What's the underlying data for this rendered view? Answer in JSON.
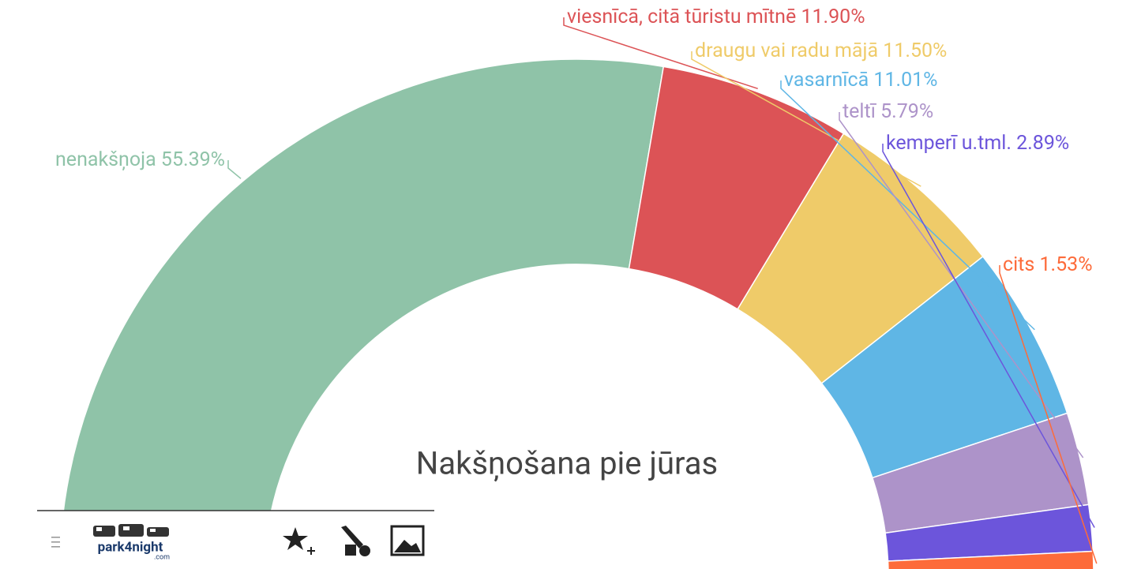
{
  "chart_data": {
    "type": "semi-donut",
    "title": "Nakšņošana pie jūras",
    "categories": [
      "nenakšņoja",
      "viesnīcā, citā tūristu mītnē",
      "draugu vai radu mājā",
      "vasarnīcā",
      "teltī",
      "kemperī u.tml.",
      "cits"
    ],
    "values": [
      55.39,
      11.9,
      11.5,
      11.01,
      5.79,
      2.89,
      1.53
    ],
    "value_labels": [
      "55.39%",
      "11.90%",
      "11.50%",
      "11.01%",
      "5.79%",
      "2.89%",
      "1.53%"
    ],
    "colors": [
      "#8fc3a8",
      "#dc5356",
      "#efcb69",
      "#5fb6e5",
      "#ad93c9",
      "#6c55db",
      "#fd6b3a"
    ]
  },
  "toolbar": {
    "logo": "park4night",
    "logo_suffix": ".com"
  }
}
